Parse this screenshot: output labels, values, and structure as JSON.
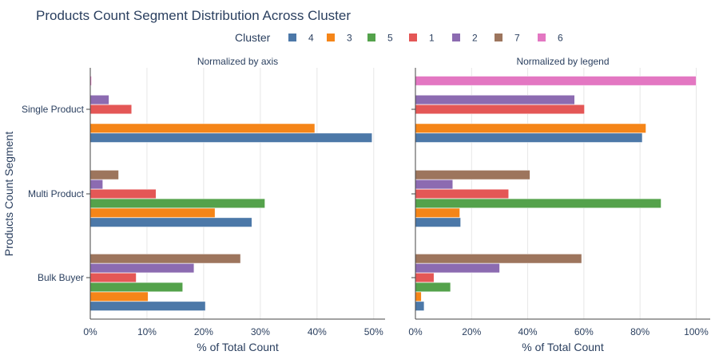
{
  "chart_data": {
    "type": "bar",
    "orientation": "horizontal",
    "title": "Products Count Segment Distribution Across Cluster",
    "legend": {
      "title": "Cluster",
      "placement": "top-center",
      "items": [
        {
          "name": "4",
          "color": "#4c78a8"
        },
        {
          "name": "3",
          "color": "#f58518"
        },
        {
          "name": "5",
          "color": "#54a24b"
        },
        {
          "name": "1",
          "color": "#e45756"
        },
        {
          "name": "2",
          "color": "#8c6bb1"
        },
        {
          "name": "7",
          "color": "#9d755d"
        },
        {
          "name": "6",
          "color": "#e377c2"
        }
      ]
    },
    "ylabel": "Products Count Segment",
    "categories": [
      "Single Product",
      "Multi Product",
      "Bulk Buyer"
    ],
    "grid": true,
    "panels": [
      {
        "subtitle": "Normalized by axis",
        "xlabel": "% of Total Count",
        "xlim": [
          0,
          52
        ],
        "xticks": [
          0,
          10,
          20,
          30,
          40,
          50
        ],
        "xtick_labels": [
          "0%",
          "10%",
          "20%",
          "30%",
          "40%",
          "50%"
        ],
        "series": [
          {
            "name": "4",
            "values": [
              49.7,
              28.5,
              20.3
            ]
          },
          {
            "name": "3",
            "values": [
              39.6,
              22.0,
              10.2
            ]
          },
          {
            "name": "5",
            "values": [
              0,
              30.8,
              16.3
            ]
          },
          {
            "name": "1",
            "values": [
              7.3,
              11.6,
              8.1
            ]
          },
          {
            "name": "2",
            "values": [
              3.3,
              2.2,
              18.3
            ]
          },
          {
            "name": "7",
            "values": [
              0,
              5.0,
              26.5
            ]
          },
          {
            "name": "6",
            "values": [
              0.2,
              0,
              0
            ]
          }
        ]
      },
      {
        "subtitle": "Normalized by legend",
        "xlabel": "% of Total Count",
        "xlim": [
          0,
          105
        ],
        "xticks": [
          0,
          20,
          40,
          60,
          80,
          100
        ],
        "xtick_labels": [
          "0%",
          "20%",
          "40%",
          "60%",
          "80%",
          "100%"
        ],
        "series": [
          {
            "name": "4",
            "values": [
              80.8,
              16.1,
              3.1
            ]
          },
          {
            "name": "3",
            "values": [
              82.1,
              15.8,
              2.1
            ]
          },
          {
            "name": "5",
            "values": [
              0,
              87.5,
              12.5
            ]
          },
          {
            "name": "1",
            "values": [
              60.2,
              33.2,
              6.6
            ]
          },
          {
            "name": "2",
            "values": [
              56.7,
              13.3,
              30.0
            ]
          },
          {
            "name": "7",
            "values": [
              0,
              40.8,
              59.2
            ]
          },
          {
            "name": "6",
            "values": [
              100,
              0,
              0
            ]
          }
        ]
      }
    ]
  }
}
